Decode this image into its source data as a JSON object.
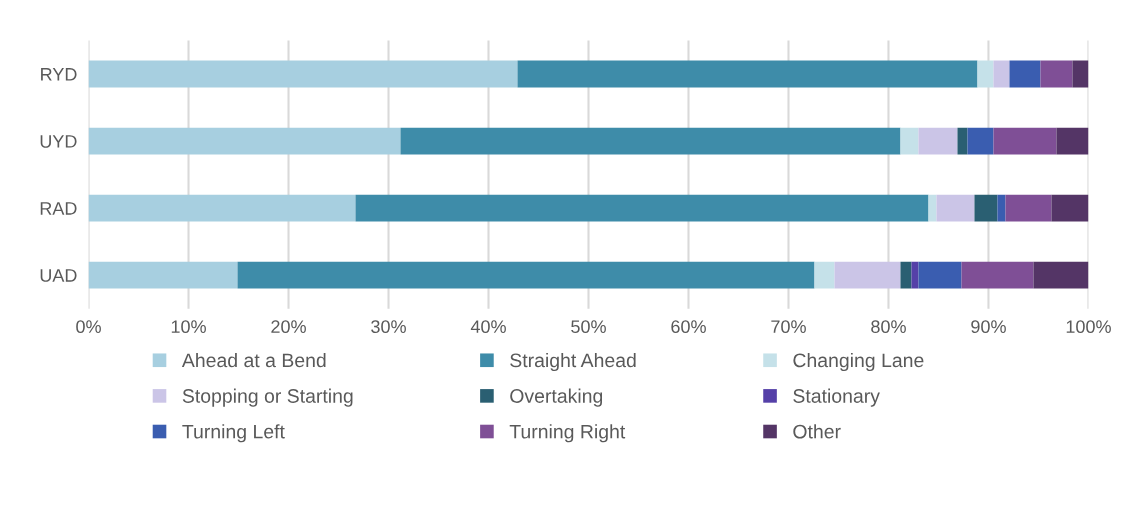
{
  "chart_data": {
    "type": "bar",
    "orientation": "horizontal",
    "stacked": true,
    "categories": [
      "RYD",
      "UYD",
      "RAD",
      "UAD"
    ],
    "xlim": [
      0,
      100
    ],
    "xticks": [
      {
        "value": 0,
        "label": "0%"
      },
      {
        "value": 10,
        "label": "10%"
      },
      {
        "value": 20,
        "label": "20%"
      },
      {
        "value": 30,
        "label": "30%"
      },
      {
        "value": 40,
        "label": "40%"
      },
      {
        "value": 50,
        "label": "50%"
      },
      {
        "value": 60,
        "label": "60%"
      },
      {
        "value": 70,
        "label": "70%"
      },
      {
        "value": 80,
        "label": "80%"
      },
      {
        "value": 90,
        "label": "90%"
      },
      {
        "value": 100,
        "label": "100%"
      }
    ],
    "grid": "x",
    "legend": "bottom",
    "series": [
      {
        "name": "Ahead at a Bend",
        "color": "#a7cfe0",
        "values": [
          42.9,
          31.2,
          26.7,
          14.9
        ]
      },
      {
        "name": "Straight Ahead",
        "color": "#3e8ca9",
        "values": [
          46.0,
          50.0,
          57.3,
          57.7
        ]
      },
      {
        "name": "Changing Lane",
        "color": "#c5e1e9",
        "values": [
          1.6,
          1.8,
          0.8,
          2.0
        ]
      },
      {
        "name": "Stopping or Starting",
        "color": "#cbc5e7",
        "values": [
          1.6,
          3.9,
          3.8,
          6.6
        ]
      },
      {
        "name": "Overtaking",
        "color": "#2a5f72",
        "values": [
          0,
          1.0,
          2.3,
          1.1
        ]
      },
      {
        "name": "Stationary",
        "color": "#5540a8",
        "values": [
          0,
          0,
          0,
          0.7
        ]
      },
      {
        "name": "Turning Left",
        "color": "#3a5db0",
        "values": [
          3.1,
          2.6,
          0.8,
          4.3
        ]
      },
      {
        "name": "Turning Right",
        "color": "#7f4f96",
        "values": [
          3.2,
          6.3,
          4.6,
          7.2
        ]
      },
      {
        "name": "Other",
        "color": "#543566",
        "values": [
          1.6,
          3.2,
          3.7,
          5.5
        ]
      }
    ]
  }
}
